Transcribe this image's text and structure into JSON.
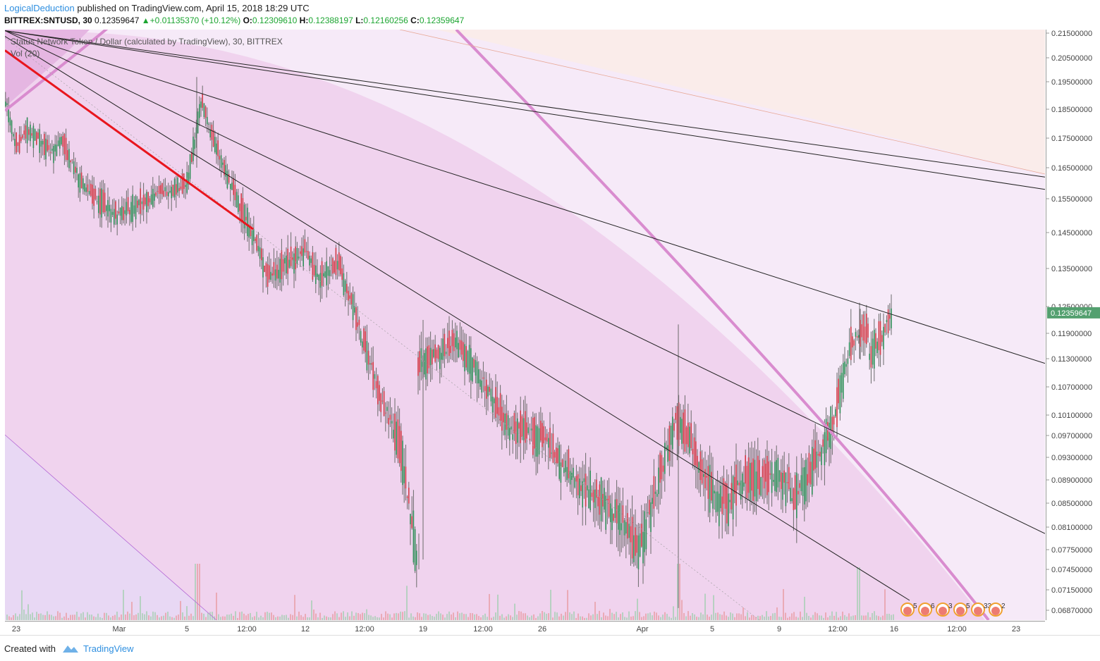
{
  "header": {
    "author": "LogicalDeduction",
    "published": " published on TradingView.com, April 15, 2018 18:29 UTC",
    "symbol": "BITTREX:SNTUSD, 30",
    "last": "0.12359647",
    "change": "+0.01135370 (+10.12%)",
    "o_label": "O:",
    "o_value": "0.12309610",
    "h_label": "H:",
    "h_value": "0.12388197",
    "l_label": "L:",
    "l_value": "0.12160256",
    "c_label": "C:",
    "c_value": "0.12359647"
  },
  "legend": {
    "title": "Status Network Token / Dollar (calculated by TradingView), 30, BITTREX",
    "volume": "Vol (20)"
  },
  "footer": {
    "created": "Created with",
    "brand": "TradingView"
  },
  "colors": {
    "up": "#2f8f58",
    "down": "#d13b48",
    "candle": "#6b6b6b",
    "arc": "#d98ccf",
    "fan_fill": "#f0d3ee",
    "band_fill": "#f6eaf8",
    "orange_fill": "#fbece8",
    "violet_fill": "#e8d8f4",
    "red_line": "#e8161e",
    "price_tag": "#53a06f"
  },
  "chart_data": {
    "type": "candlestick",
    "symbol": "BITTREX:SNTUSD",
    "timeframe": "30",
    "ylim": [
      0.0665,
      0.2165
    ],
    "y_ticks": [
      "0.21500000",
      "0.20500000",
      "0.19500000",
      "0.18500000",
      "0.17500000",
      "0.16500000",
      "0.15500000",
      "0.14500000",
      "0.13500000",
      "0.12500000",
      "0.11900000",
      "0.11300000",
      "0.10700000",
      "0.10100000",
      "0.09700000",
      "0.09300000",
      "0.08900000",
      "0.08500000",
      "0.08100000",
      "0.07750000",
      "0.07450000",
      "0.07150000",
      "0.06870000"
    ],
    "x_ticks": [
      "23",
      "Mar",
      "5",
      "12:00",
      "12",
      "12:00",
      "19",
      "12:00",
      "26",
      "Apr",
      "5",
      "9",
      "12:00",
      "16",
      "12:00",
      "23"
    ],
    "last_price": "0.12359647",
    "price_path": [
      {
        "t": "Feb 22",
        "p": 0.188
      },
      {
        "t": "Feb 23",
        "p": 0.172
      },
      {
        "t": "Feb 24",
        "p": 0.178
      },
      {
        "t": "Feb 26",
        "p": 0.17
      },
      {
        "t": "Feb 27",
        "p": 0.174
      },
      {
        "t": "Feb 28",
        "p": 0.158
      },
      {
        "t": "Mar 1",
        "p": 0.15
      },
      {
        "t": "Mar 3",
        "p": 0.156
      },
      {
        "t": "Mar 5",
        "p": 0.16
      },
      {
        "t": "Mar 6",
        "p": 0.188
      },
      {
        "t": "Mar 7",
        "p": 0.172
      },
      {
        "t": "Mar 8",
        "p": 0.16
      },
      {
        "t": "Mar 10",
        "p": 0.144
      },
      {
        "t": "Mar 11",
        "p": 0.133
      },
      {
        "t": "Mar 12",
        "p": 0.14
      },
      {
        "t": "Mar 13",
        "p": 0.132
      },
      {
        "t": "Mar 14",
        "p": 0.137
      },
      {
        "t": "Mar 16",
        "p": 0.122
      },
      {
        "t": "Mar 17",
        "p": 0.105
      },
      {
        "t": "Mar 18",
        "p": 0.096
      },
      {
        "t": "Mar 19",
        "p": 0.075
      },
      {
        "t": "Mar 19",
        "p": 0.112
      },
      {
        "t": "Mar 21",
        "p": 0.117
      },
      {
        "t": "Mar 22",
        "p": 0.11
      },
      {
        "t": "Mar 24",
        "p": 0.098
      },
      {
        "t": "Mar 26",
        "p": 0.097
      },
      {
        "t": "Mar 27",
        "p": 0.091
      },
      {
        "t": "Mar 28",
        "p": 0.088
      },
      {
        "t": "Mar 30",
        "p": 0.084
      },
      {
        "t": "Mar 31",
        "p": 0.078
      },
      {
        "t": "Apr 1",
        "p": 0.088
      },
      {
        "t": "Apr 2",
        "p": 0.1
      },
      {
        "t": "Apr 3",
        "p": 0.098
      },
      {
        "t": "Apr 4",
        "p": 0.092
      },
      {
        "t": "Apr 5",
        "p": 0.086
      },
      {
        "t": "Apr 6",
        "p": 0.085
      },
      {
        "t": "Apr 7",
        "p": 0.089
      },
      {
        "t": "Apr 9",
        "p": 0.09
      },
      {
        "t": "Apr 10",
        "p": 0.086
      },
      {
        "t": "Apr 11",
        "p": 0.091
      },
      {
        "t": "Apr 12",
        "p": 0.1
      },
      {
        "t": "Apr 13",
        "p": 0.117
      },
      {
        "t": "Apr 14",
        "p": 0.12
      },
      {
        "t": "Apr 14",
        "p": 0.113
      },
      {
        "t": "Apr 15",
        "p": 0.1236
      }
    ],
    "drawings": {
      "fan_lines": 5,
      "fan_origin": {
        "t": "Feb 22",
        "p": 0.216
      },
      "fan_right_end_prices": [
        0.162,
        0.112,
        0.08
      ],
      "red_trendline": {
        "from": {
          "t": "Feb 22",
          "p": 0.208
        },
        "to": {
          "t": "Mar 10",
          "p": 0.146
        }
      },
      "arc": "Fibonacci arc"
    },
    "event_markers": [
      "5",
      "6",
      "3",
      "5",
      "33",
      "2"
    ]
  }
}
